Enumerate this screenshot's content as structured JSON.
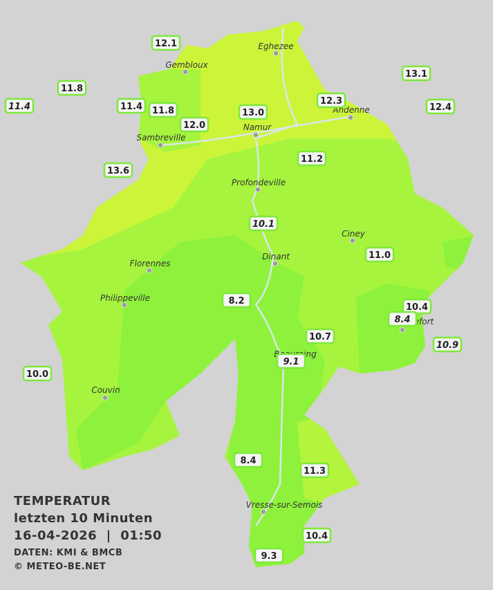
{
  "title": {
    "line1": "TEMPERATUR",
    "line2": "letzten 10 Minuten",
    "line3": "16-04-2026  |  01:50",
    "source": "DATEN: KMI & BMCB",
    "copyright": "© METEO-BE.NET"
  },
  "cities": [
    "Eghezee",
    "Gembloux",
    "Andenne",
    "Namur",
    "Sambreville",
    "Profondeville",
    "Ciney",
    "Dinant",
    "Florennes",
    "Philippeville",
    "Beauraing",
    "Rochefort",
    "Couvin",
    "Vresse-sur-Semois"
  ],
  "stations": [
    "12.1",
    "11.8",
    "11.4",
    "11.4",
    "11.8",
    "12.0",
    "13.0",
    "12.3",
    "13.1",
    "12.4",
    "13.6",
    "11.2",
    "10.1",
    "11.0",
    "8.2",
    "10.4",
    "8.4",
    "10.7",
    "10.9",
    "9.1",
    "10.0",
    "8.4",
    "11.3",
    "10.4",
    "9.3"
  ]
}
